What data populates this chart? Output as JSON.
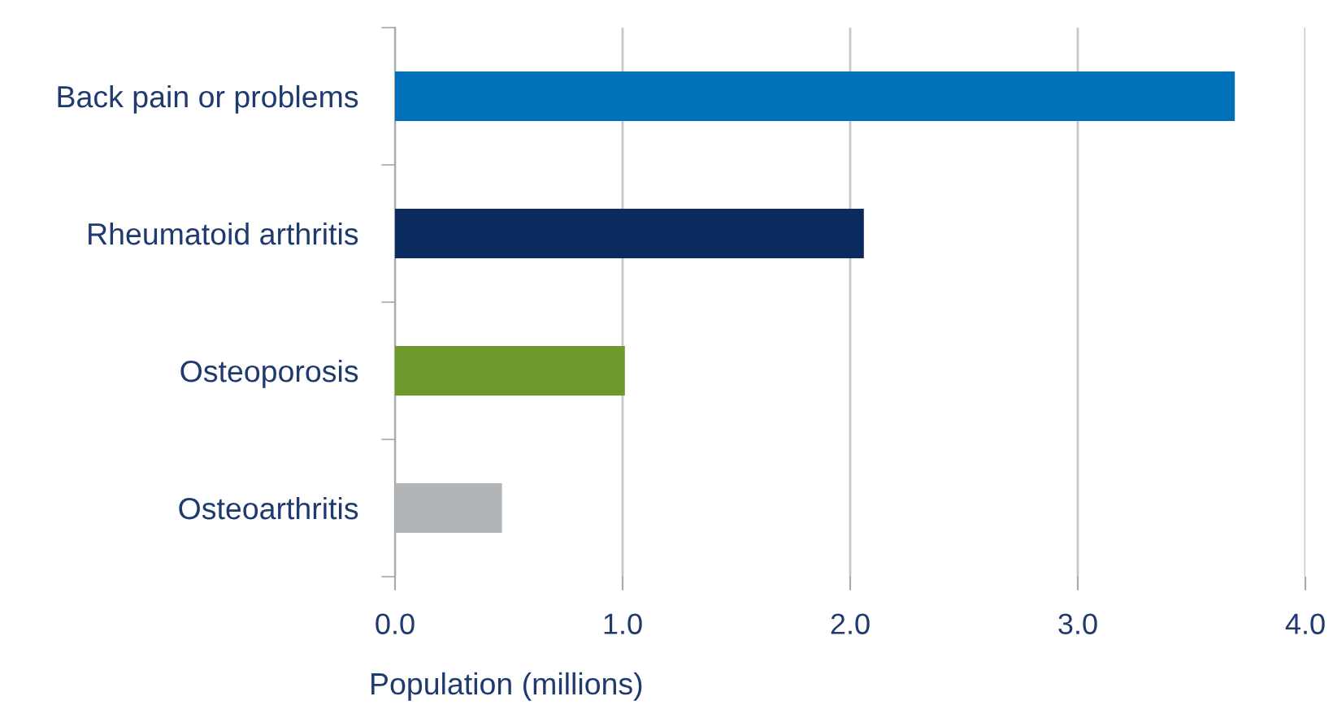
{
  "chart_data": {
    "type": "bar",
    "orientation": "horizontal",
    "categories": [
      "Back pain or problems",
      "Rheumatoid arthritis",
      "Osteoporosis",
      "Osteoarthritis"
    ],
    "values": [
      3.69,
      2.06,
      1.01,
      0.47
    ],
    "colors": [
      "#0070b8",
      "#0b2a5e",
      "#6e9a2b",
      "#b2b5b8"
    ],
    "xlabel": "Population (millions)",
    "xlim": [
      0,
      4
    ],
    "xticks": [
      {
        "value": 0,
        "label": "0.0"
      },
      {
        "value": 1,
        "label": "1.0"
      },
      {
        "value": 2,
        "label": "2.0"
      },
      {
        "value": 3,
        "label": "3.0"
      },
      {
        "value": 4,
        "label": "4.0"
      }
    ],
    "grid": "x"
  }
}
